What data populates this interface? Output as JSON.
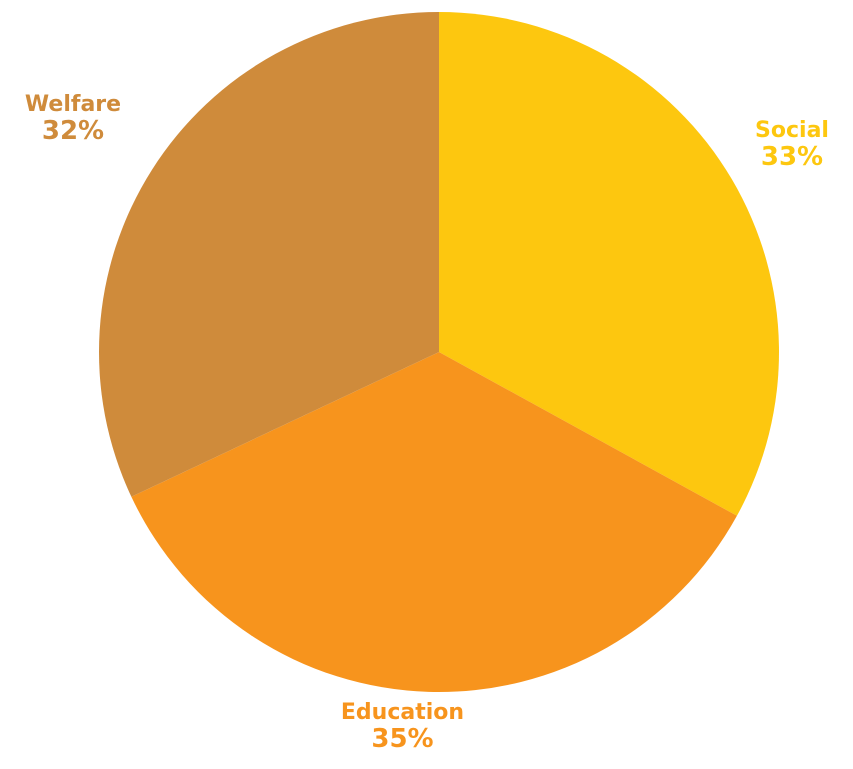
{
  "chart_data": {
    "type": "pie",
    "title": "",
    "slices": [
      {
        "label": "Social",
        "value": 33,
        "value_label": "33%",
        "color": "#FDC70F"
      },
      {
        "label": "Education",
        "value": 35,
        "value_label": "35%",
        "color": "#F7941D"
      },
      {
        "label": "Welfare",
        "value": 32,
        "value_label": "32%",
        "color": "#CF8B3B"
      }
    ],
    "start_angle": "12 o'clock",
    "direction": "clockwise",
    "legend": "none",
    "label_style": "outside, colored to match slice"
  }
}
